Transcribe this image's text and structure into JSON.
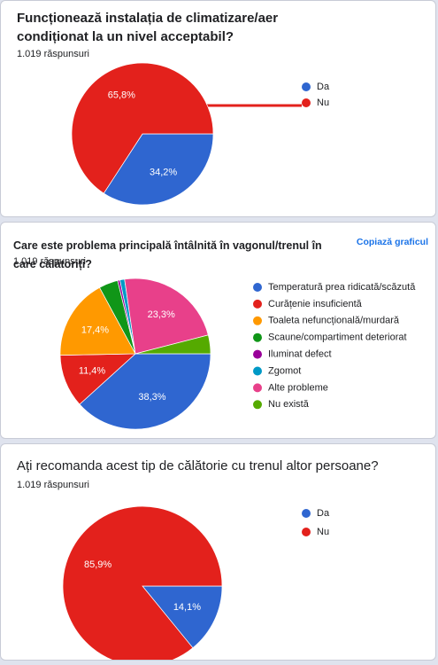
{
  "chart_data": [
    {
      "type": "pie",
      "title": "Funcționează instalația de climatizare/aer condiționat la un nivel acceptabil?",
      "subtitle": "1.019 răspunsuri",
      "categories": [
        "Da",
        "Nu"
      ],
      "values": [
        34.2,
        65.8
      ],
      "value_labels": [
        "34,2%",
        "65,8%"
      ],
      "colors": [
        "#2f66d0",
        "#e3211c"
      ]
    },
    {
      "type": "pie",
      "title": "Care este problema principală întâlnită în vagonul/trenul în care călătoriți?",
      "subtitle": "1.019 răspunsuri",
      "copy_button": "Copiază graficul",
      "categories": [
        "Temperatură prea ridicată/scăzută",
        "Curățenie insuficientă",
        "Toaleta nefuncțională/murdară",
        "Scaune/compartiment deteriorat",
        "Iluminat defect",
        "Zgomot",
        "Alte probleme",
        "Nu există"
      ],
      "values": [
        38.3,
        11.4,
        17.4,
        4.1,
        0.5,
        1.0,
        23.3,
        4.0
      ],
      "value_labels": [
        "38,3%",
        "11,4%",
        "17,4%",
        null,
        null,
        null,
        "23,3%",
        null
      ],
      "colors": [
        "#2f66d0",
        "#e3211c",
        "#ff9900",
        "#109618",
        "#990099",
        "#0099c6",
        "#e8408a",
        "#55aa00"
      ]
    },
    {
      "type": "pie",
      "title": "Ați recomanda acest tip de călătorie cu trenul altor persoane?",
      "subtitle": "1.019 răspunsuri",
      "categories": [
        "Da",
        "Nu"
      ],
      "values": [
        14.1,
        85.9
      ],
      "value_labels": [
        "14,1%",
        "85,9%"
      ],
      "colors": [
        "#2f66d0",
        "#e3211c"
      ]
    }
  ]
}
